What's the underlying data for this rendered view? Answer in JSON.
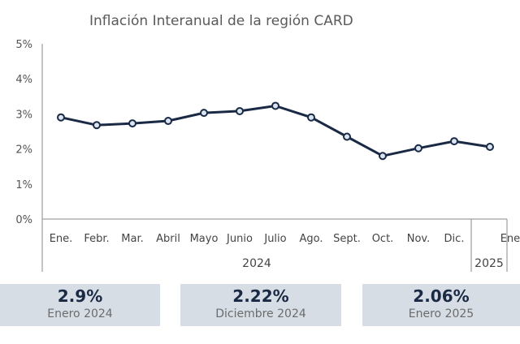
{
  "colors": {
    "line": "#1a2a45",
    "marker_fill": "#dbe5f1",
    "axis": "#8a8a8a",
    "card_bg": "#d7dde4"
  },
  "chart_data": {
    "type": "line",
    "title": "Inflación Interanual de la región CARD",
    "categories": [
      "Ene.",
      "Febr.",
      "Mar.",
      "Abril",
      "Mayo",
      "Junio",
      "Julio",
      "Ago.",
      "Sept.",
      "Oct.",
      "Nov.",
      "Dic.",
      "Ene."
    ],
    "year_groups": [
      {
        "label": "2024",
        "count": 12
      },
      {
        "label": "2025",
        "count": 1
      }
    ],
    "values": [
      2.9,
      2.68,
      2.73,
      2.8,
      3.03,
      3.08,
      3.23,
      2.9,
      2.35,
      1.8,
      2.02,
      2.22,
      2.06
    ],
    "ylim": [
      0,
      5
    ],
    "yticks": [
      "0%",
      "1%",
      "2%",
      "3%",
      "4%",
      "5%"
    ],
    "grid": false,
    "xlabel": "",
    "ylabel": ""
  },
  "cards": [
    {
      "value": "2.9%",
      "label": "Enero 2024"
    },
    {
      "value": "2.22%",
      "label": "Diciembre 2024"
    },
    {
      "value": "2.06%",
      "label": "Enero 2025"
    }
  ]
}
